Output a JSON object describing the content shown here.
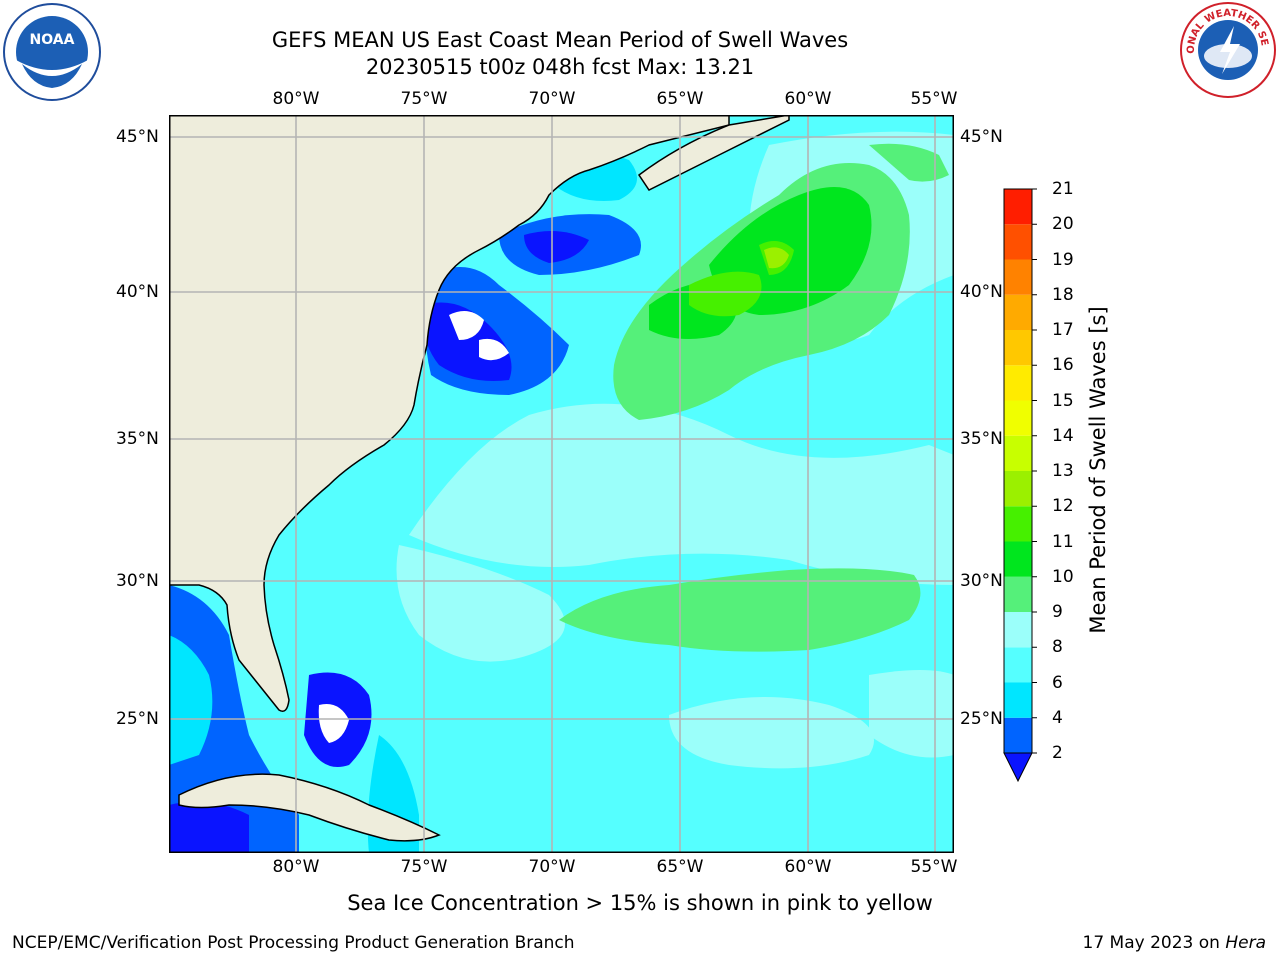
{
  "title": {
    "line1": "GEFS MEAN US East Coast Mean Period of Swell Waves",
    "line2": "20230515 t00z 048h fcst   Max: 13.21"
  },
  "map": {
    "projection": "cylindrical",
    "lon_range": [
      -85,
      -54.4
    ],
    "lat_range": [
      20.5,
      45.8
    ],
    "lon_ticks": [
      "80°W",
      "75°W",
      "70°W",
      "65°W",
      "60°W",
      "55°W"
    ],
    "lat_ticks": [
      "45°N",
      "40°N",
      "35°N",
      "30°N",
      "25°N"
    ],
    "grid": true,
    "land_color": "#eeeddc",
    "ocean_base_color": "#55ffff"
  },
  "colorbar": {
    "title": "Mean Period of Swell Waves [s]",
    "levels": [
      2,
      4,
      6,
      8,
      9,
      10,
      11,
      12,
      13,
      14,
      15,
      16,
      17,
      18,
      19,
      20,
      21
    ],
    "level_labels": [
      "2",
      "4",
      "6",
      "8",
      "9",
      "10",
      "11",
      "12",
      "13",
      "14",
      "15",
      "16",
      "17",
      "18",
      "19",
      "20",
      "21"
    ],
    "colors": [
      "#0064ff",
      "#00e6ff",
      "#55ffff",
      "#9bfffa",
      "#55f07a",
      "#00e61e",
      "#46f000",
      "#9bf000",
      "#c8ff00",
      "#f0ff00",
      "#ffeb00",
      "#ffc800",
      "#ffaa00",
      "#ff8200",
      "#ff5000",
      "#ff1e00"
    ],
    "under_color": "#0a14ff",
    "extend": "min"
  },
  "footer": {
    "ice_note": "Sea Ice Concentration > 15% is shown in pink to yellow",
    "left": "NCEP/EMC/Verification Post Processing Product Generation Branch",
    "right_date": "17 May 2023 on",
    "right_host": "Hera"
  },
  "logos": {
    "noaa": "NOAA",
    "nws": "NATIONAL WEATHER SERVICE"
  }
}
